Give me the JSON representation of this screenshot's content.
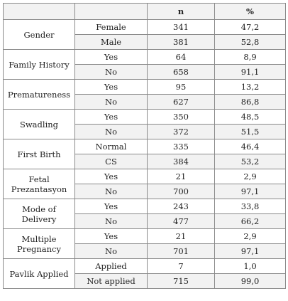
{
  "headers": [
    "",
    "",
    "n",
    "%"
  ],
  "groups": [
    {
      "label": "Gender",
      "rows": [
        {
          "category": "Female",
          "n": "341",
          "pct": "47,2"
        },
        {
          "category": "Male",
          "n": "381",
          "pct": "52,8"
        }
      ]
    },
    {
      "label": "Family History",
      "rows": [
        {
          "category": "Yes",
          "n": "64",
          "pct": "8,9"
        },
        {
          "category": "No",
          "n": "658",
          "pct": "91,1"
        }
      ]
    },
    {
      "label": "Prematureness",
      "rows": [
        {
          "category": "Yes",
          "n": "95",
          "pct": "13,2"
        },
        {
          "category": "No",
          "n": "627",
          "pct": "86,8"
        }
      ]
    },
    {
      "label": "Swadling",
      "rows": [
        {
          "category": "Yes",
          "n": "350",
          "pct": "48,5"
        },
        {
          "category": "No",
          "n": "372",
          "pct": "51,5"
        }
      ]
    },
    {
      "label": "First Birth",
      "rows": [
        {
          "category": "Normal",
          "n": "335",
          "pct": "46,4"
        },
        {
          "category": "CS",
          "n": "384",
          "pct": "53,2"
        }
      ]
    },
    {
      "label": "Fetal Prezantasyon",
      "rows": [
        {
          "category": "Yes",
          "n": "21",
          "pct": "2,9"
        },
        {
          "category": "No",
          "n": "700",
          "pct": "97,1"
        }
      ]
    },
    {
      "label": "Mode of Delivery",
      "rows": [
        {
          "category": "Yes",
          "n": "243",
          "pct": "33,8"
        },
        {
          "category": "No",
          "n": "477",
          "pct": "66,2"
        }
      ]
    },
    {
      "label": "Multiple Pregnancy",
      "rows": [
        {
          "category": "Yes",
          "n": "21",
          "pct": "2,9"
        },
        {
          "category": "No",
          "n": "701",
          "pct": "97,1"
        }
      ]
    },
    {
      "label": "Pavlik Applied",
      "rows": [
        {
          "category": "Applied",
          "n": "7",
          "pct": "1,0"
        },
        {
          "category": "Not applied",
          "n": "715",
          "pct": "99,0"
        }
      ]
    }
  ]
}
